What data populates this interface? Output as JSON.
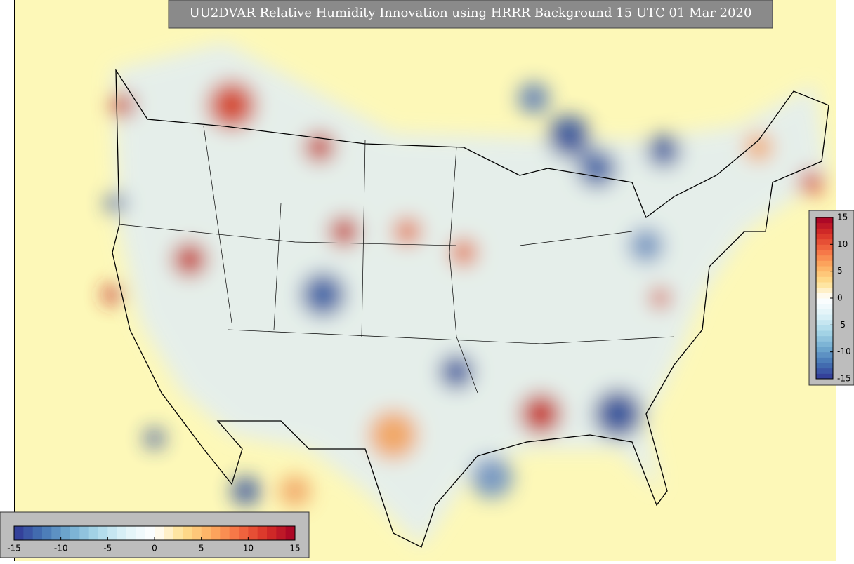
{
  "title": "UU2DVAR Relative Humidity Innovation using HRRR Background 15 UTC 01 Mar 2020",
  "colorbar": {
    "lim": [
      -15,
      15
    ],
    "ticks": [
      -15,
      -10,
      -5,
      0,
      5,
      10,
      15
    ]
  }
}
